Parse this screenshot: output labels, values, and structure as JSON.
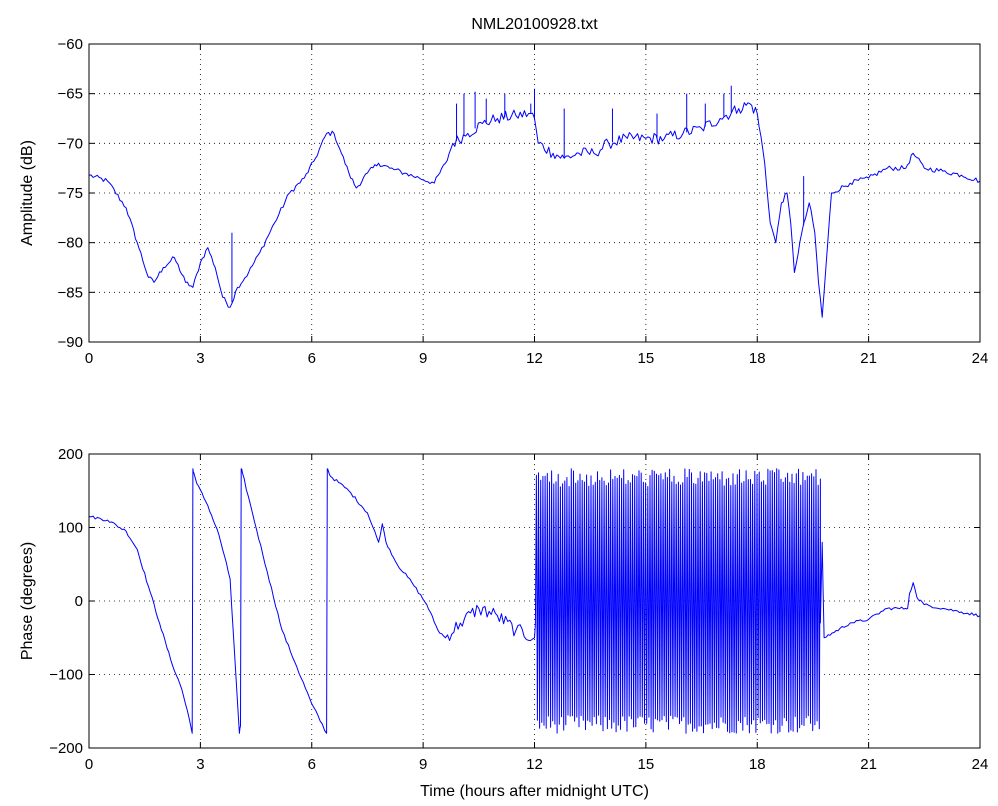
{
  "chart_data": [
    {
      "type": "line",
      "title": "NML20100928.txt",
      "xlabel": "",
      "ylabel": "Amplitude (dB)",
      "xlim": [
        0,
        24
      ],
      "ylim": [
        -90,
        -60
      ],
      "xticks": [
        "0",
        "3",
        "6",
        "9",
        "12",
        "15",
        "18",
        "21",
        "24"
      ],
      "yticks": [
        "-60",
        "-65",
        "-70",
        "-75",
        "-80",
        "-85",
        "-90"
      ],
      "grid": true,
      "color": "#0000ff",
      "x": [
        0,
        0.5,
        1.0,
        1.3,
        1.6,
        1.75,
        2.0,
        2.3,
        2.6,
        2.8,
        3.0,
        3.2,
        3.4,
        3.6,
        3.8,
        4.0,
        4.3,
        4.6,
        5.0,
        5.4,
        5.8,
        6.1,
        6.4,
        6.6,
        6.8,
        7.0,
        7.2,
        7.5,
        7.8,
        8.1,
        8.5,
        8.9,
        9.3,
        9.6,
        9.8,
        10.2,
        10.6,
        11.0,
        11.5,
        11.9,
        12.0,
        12.1,
        12.5,
        12.8,
        13.2,
        13.6,
        14.0,
        14.5,
        15.0,
        15.5,
        16.0,
        16.5,
        17.0,
        17.5,
        17.8,
        18.0,
        18.2,
        18.35,
        18.5,
        18.65,
        18.8,
        18.9,
        19.0,
        19.2,
        19.4,
        19.55,
        19.65,
        19.75,
        19.8,
        20.0,
        20.5,
        21.0,
        21.5,
        22.0,
        22.2,
        22.5,
        23.0,
        23.5,
        24.0
      ],
      "y": [
        -73.2,
        -73.8,
        -76.5,
        -80,
        -83.5,
        -84,
        -82.5,
        -81.5,
        -84,
        -84.5,
        -82,
        -80.5,
        -82.5,
        -85.5,
        -86.5,
        -84.5,
        -83,
        -81,
        -78,
        -75,
        -73.5,
        -71.5,
        -69,
        -69,
        -71,
        -73,
        -74.5,
        -73,
        -72,
        -72.5,
        -73,
        -73.5,
        -74,
        -72,
        -70,
        -69,
        -68,
        -67.5,
        -67.2,
        -67,
        -67.5,
        -70,
        -71,
        -71.5,
        -71,
        -71,
        -70,
        -69.5,
        -69.5,
        -69.5,
        -69,
        -68.5,
        -67.5,
        -66.5,
        -66,
        -67,
        -72,
        -78,
        -80,
        -76,
        -75,
        -78,
        -83,
        -79,
        -76,
        -79,
        -84,
        -87.5,
        -85,
        -75,
        -74,
        -73.5,
        -72.5,
        -72.5,
        -71,
        -72.5,
        -72.8,
        -73.2,
        -73.8
      ],
      "spikes": [
        {
          "x": 3.85,
          "y": -79
        },
        {
          "x": 9.9,
          "y": -66
        },
        {
          "x": 10.1,
          "y": -65
        },
        {
          "x": 10.4,
          "y": -64.8
        },
        {
          "x": 10.7,
          "y": -65.5
        },
        {
          "x": 11.2,
          "y": -65
        },
        {
          "x": 11.9,
          "y": -66
        },
        {
          "x": 12.0,
          "y": -64.5
        },
        {
          "x": 12.8,
          "y": -66.5
        },
        {
          "x": 14.1,
          "y": -66.5
        },
        {
          "x": 15.3,
          "y": -67
        },
        {
          "x": 16.1,
          "y": -65
        },
        {
          "x": 16.6,
          "y": -66
        },
        {
          "x": 17.1,
          "y": -65
        },
        {
          "x": 17.3,
          "y": -64.2
        },
        {
          "x": 19.25,
          "y": -73.3
        }
      ]
    },
    {
      "type": "line",
      "title": "",
      "xlabel": "Time (hours after midnight UTC)",
      "ylabel": "Phase (degrees)",
      "xlim": [
        0,
        24
      ],
      "ylim": [
        -200,
        200
      ],
      "xticks": [
        "0",
        "3",
        "6",
        "9",
        "12",
        "15",
        "18",
        "21",
        "24"
      ],
      "yticks": [
        "200",
        "100",
        "0",
        "-100",
        "-200"
      ],
      "grid": true,
      "color": "#0000ff",
      "x": [
        0,
        0.5,
        1.0,
        1.3,
        1.6,
        1.9,
        2.2,
        2.5,
        2.7,
        2.78,
        2.8,
        2.82,
        2.9,
        3.2,
        3.5,
        3.8,
        4.05,
        4.08,
        4.1,
        4.13,
        4.4,
        4.8,
        5.2,
        5.6,
        6.0,
        6.4,
        6.42,
        6.44,
        6.5,
        7.0,
        7.5,
        7.8,
        7.9,
        8.0,
        8.3,
        8.7,
        9.1,
        9.4,
        9.6,
        10.0,
        10.5,
        11.0,
        11.5,
        12.0,
        12.05,
        19.7,
        19.75,
        19.8,
        20.5,
        21.0,
        21.5,
        22.0,
        22.05,
        22.1,
        22.2,
        22.3,
        22.5,
        23.0,
        23.5,
        24.0
      ],
      "y": [
        115,
        110,
        95,
        70,
        20,
        -30,
        -80,
        -120,
        -160,
        -180,
        180,
        175,
        160,
        130,
        90,
        30,
        -180,
        -170,
        180,
        175,
        120,
        40,
        -40,
        -90,
        -140,
        -180,
        180,
        178,
        170,
        150,
        120,
        80,
        105,
        80,
        50,
        25,
        -5,
        -40,
        -50,
        -30,
        -10,
        -20,
        -40,
        -50,
        -30,
        -30,
        80,
        -50,
        -30,
        -25,
        -10,
        -10,
        -10,
        10,
        25,
        5,
        -5,
        -10,
        -15,
        -20
      ],
      "oscillation": {
        "x_start": 12.05,
        "x_end": 19.7,
        "y_min": -180,
        "y_max": 180
      }
    }
  ]
}
